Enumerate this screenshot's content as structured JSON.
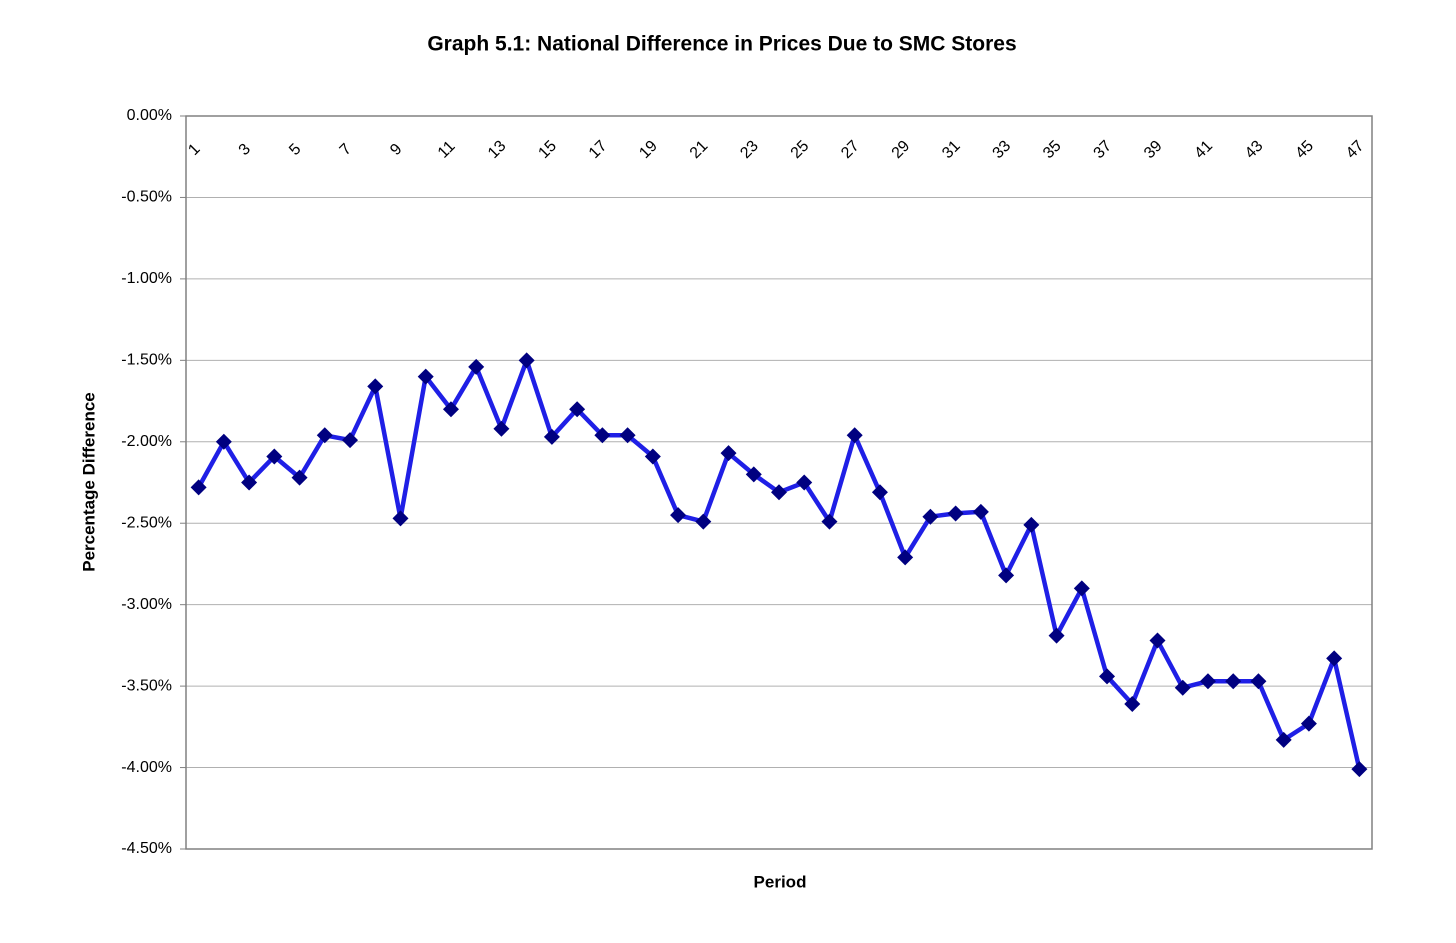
{
  "chart_data": {
    "type": "line",
    "title": "Graph 5.1: National Difference in Prices Due to SMC Stores",
    "x_label": "Period",
    "y_label": "Percentage Difference",
    "categories": [
      "1",
      null,
      "3",
      null,
      "5",
      null,
      "7",
      null,
      "9",
      null,
      "11",
      null,
      "13",
      null,
      "15",
      null,
      "17",
      null,
      "19",
      null,
      "21",
      null,
      "23",
      null,
      "25",
      null,
      "27",
      null,
      "29",
      null,
      "31",
      null,
      "33",
      null,
      "35",
      null,
      "37",
      null,
      "39",
      null,
      "41",
      null,
      "43",
      null,
      "45",
      null,
      "47"
    ],
    "series": [
      {
        "color": "#1f1fe6",
        "marker_color": "#000080",
        "values": [
          -2.28,
          -2.0,
          -2.25,
          -2.09,
          -2.22,
          -1.96,
          -1.99,
          -1.66,
          -2.47,
          -1.6,
          -1.8,
          -1.54,
          -1.92,
          -1.5,
          -1.97,
          -1.8,
          -1.96,
          -1.96,
          -2.09,
          -2.45,
          -2.49,
          -2.07,
          -2.2,
          -2.31,
          -2.25,
          -2.49,
          -1.96,
          -2.31,
          -2.71,
          -2.46,
          -2.44,
          -2.43,
          -2.82,
          -2.51,
          -3.19,
          -2.9,
          -3.44,
          -3.61,
          -3.22,
          -3.51,
          -3.47,
          -3.47,
          -3.47,
          -3.83,
          -3.73,
          -3.33,
          -4.01
        ]
      }
    ],
    "ylim": [
      -4.5,
      0
    ],
    "yticks": [
      {
        "value": 0,
        "label": "0.00%"
      },
      {
        "value": -0.5,
        "label": "-0.50%"
      },
      {
        "value": -1,
        "label": "-1.00%"
      },
      {
        "value": -1.5,
        "label": "-1.50%"
      },
      {
        "value": -2,
        "label": "-2.00%"
      },
      {
        "value": -2.5,
        "label": "-2.50%"
      },
      {
        "value": -3,
        "label": "-3.00%"
      },
      {
        "value": -3.5,
        "label": "-3.50%"
      },
      {
        "value": -4,
        "label": "-4.00%"
      },
      {
        "value": -4.5,
        "label": "-4.50%"
      }
    ],
    "grid": true
  }
}
